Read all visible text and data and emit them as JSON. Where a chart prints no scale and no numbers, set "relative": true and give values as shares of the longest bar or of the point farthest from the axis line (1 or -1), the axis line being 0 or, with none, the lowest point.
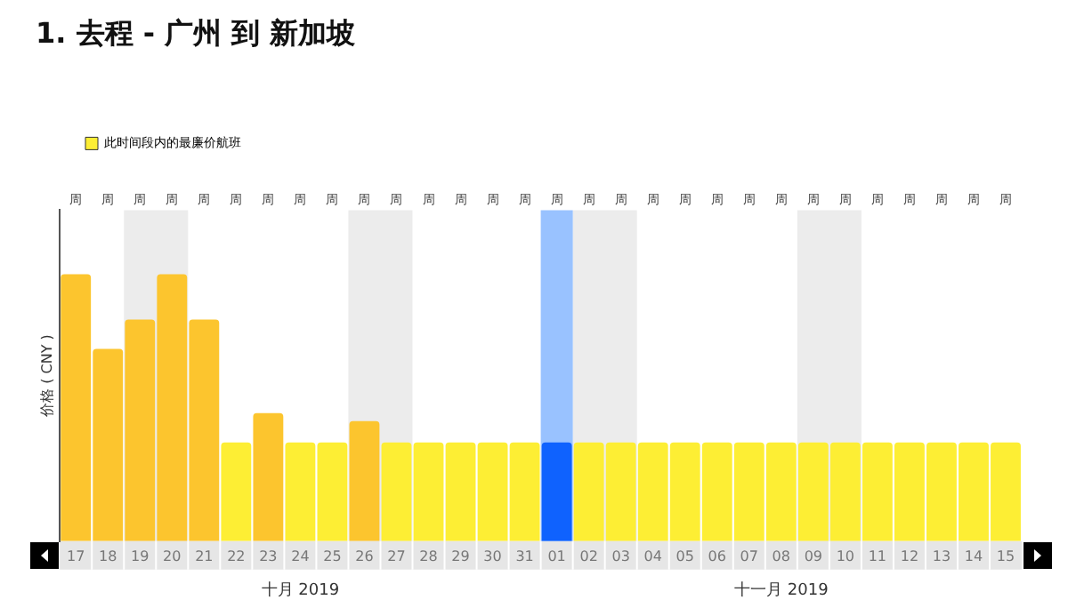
{
  "chart_data": {
    "type": "bar",
    "title": "1. 去程 - 广州 到 新加坡",
    "ylabel": "价格 ( CNY )",
    "relative": true,
    "legend": "top left",
    "grid": false,
    "categories": [
      "17",
      "18",
      "19",
      "20",
      "21",
      "22",
      "23",
      "24",
      "25",
      "26",
      "27",
      "28",
      "29",
      "30",
      "31",
      "01",
      "02",
      "03",
      "04",
      "05",
      "06",
      "07",
      "08",
      "09",
      "10",
      "11",
      "12",
      "13",
      "14",
      "15"
    ],
    "series": [
      {
        "name": "此时间段内的最廉价航班",
        "color": "#fdee34",
        "values": [
          1,
          0.72,
          0.83,
          1,
          0.83,
          0.37,
          0.48,
          0.37,
          0.37,
          0.45,
          0.37,
          0.37,
          0.37,
          0.37,
          0.37,
          0.37,
          0.37,
          0.37,
          0.37,
          0.37,
          0.37,
          0.37,
          0.37,
          0.37,
          0.37,
          0.37,
          0.37,
          0.37,
          0.37,
          0.37
        ],
        "colors": [
          "#fcc52e",
          "#fcc52e",
          "#fcc52e",
          "#fcc52e",
          "#fcc52e",
          "#fdee34",
          "#fcc52e",
          "#fdee34",
          "#fdee34",
          "#fcc52e",
          "#fdee34",
          "#fdee34",
          "#fdee34",
          "#fdee34",
          "#fdee34",
          "#0f62fe",
          "#fdee34",
          "#fdee34",
          "#fdee34",
          "#fdee34",
          "#fdee34",
          "#fdee34",
          "#fdee34",
          "#fdee34",
          "#fdee34",
          "#fdee34",
          "#fdee34",
          "#fdee34",
          "#fdee34",
          "#fdee34"
        ]
      }
    ],
    "bands": [
      {
        "axis": "x",
        "from": "19",
        "to": "20",
        "color": "#ececec"
      },
      {
        "axis": "x",
        "from": "26",
        "to": "27",
        "color": "#ececec"
      },
      {
        "axis": "x",
        "from": "02",
        "to": "03",
        "color": "#ececec"
      },
      {
        "axis": "x",
        "from": "09",
        "to": "10",
        "color": "#ececec"
      },
      {
        "axis": "x",
        "from": "01",
        "to": "01",
        "color": "#99c2ff"
      }
    ],
    "annotations": [
      "十月 2019",
      "十一月 2019",
      "周",
      "周",
      "周",
      "周",
      "周",
      "周",
      "周",
      "周",
      "周",
      "周",
      "周",
      "周",
      "周",
      "周",
      "周",
      "周",
      "周",
      "周",
      "周",
      "周",
      "周",
      "周",
      "周",
      "周",
      "周",
      "周",
      "周",
      "周",
      "周",
      "周"
    ]
  }
}
